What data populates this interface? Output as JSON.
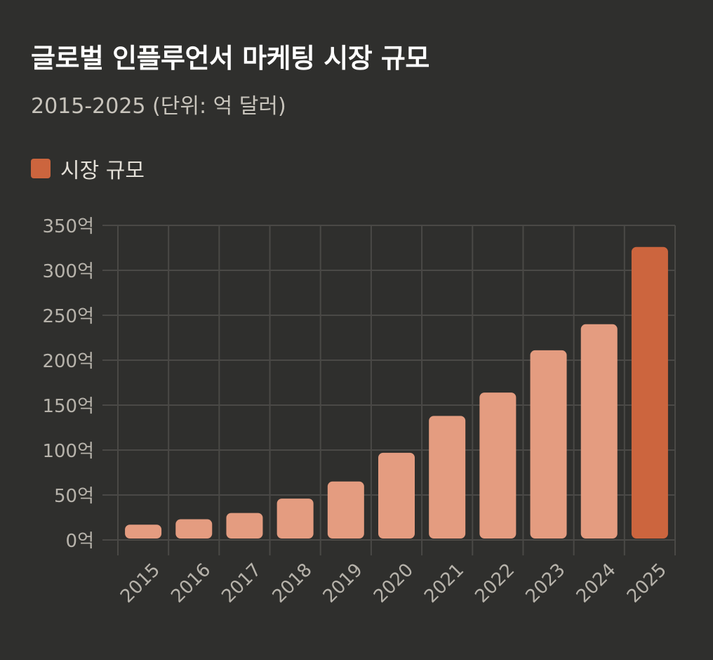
{
  "title": "글로벌 인플루언서 마케팅 시장 규모",
  "subtitle": "2015-2025 (단위: 억 달러)",
  "legend": [
    {
      "label": "시장 규모",
      "color": "#cc653e"
    }
  ],
  "colors": {
    "background": "#2f2f2d",
    "bar": "#e49c80",
    "bar_highlight": "#cc653e",
    "grid": "#4a4946",
    "axis_text": "#b7b3ab"
  },
  "chart_data": {
    "type": "bar",
    "title": "글로벌 인플루언서 마케팅 시장 규모",
    "subtitle": "2015-2025 (단위: 억 달러)",
    "xlabel": "",
    "ylabel": "",
    "categories": [
      "2015",
      "2016",
      "2017",
      "2018",
      "2019",
      "2020",
      "2021",
      "2022",
      "2023",
      "2024",
      "2025"
    ],
    "series": [
      {
        "name": "시장 규모",
        "values": [
          17,
          23,
          30,
          46,
          65,
          97,
          138,
          164,
          211,
          240,
          326
        ]
      }
    ],
    "highlight_index": 10,
    "ylim": [
      0,
      350
    ],
    "yticks": [
      0,
      50,
      100,
      150,
      200,
      250,
      300,
      350
    ],
    "ytick_suffix": "억",
    "grid": true,
    "legend_position": "top-left"
  }
}
